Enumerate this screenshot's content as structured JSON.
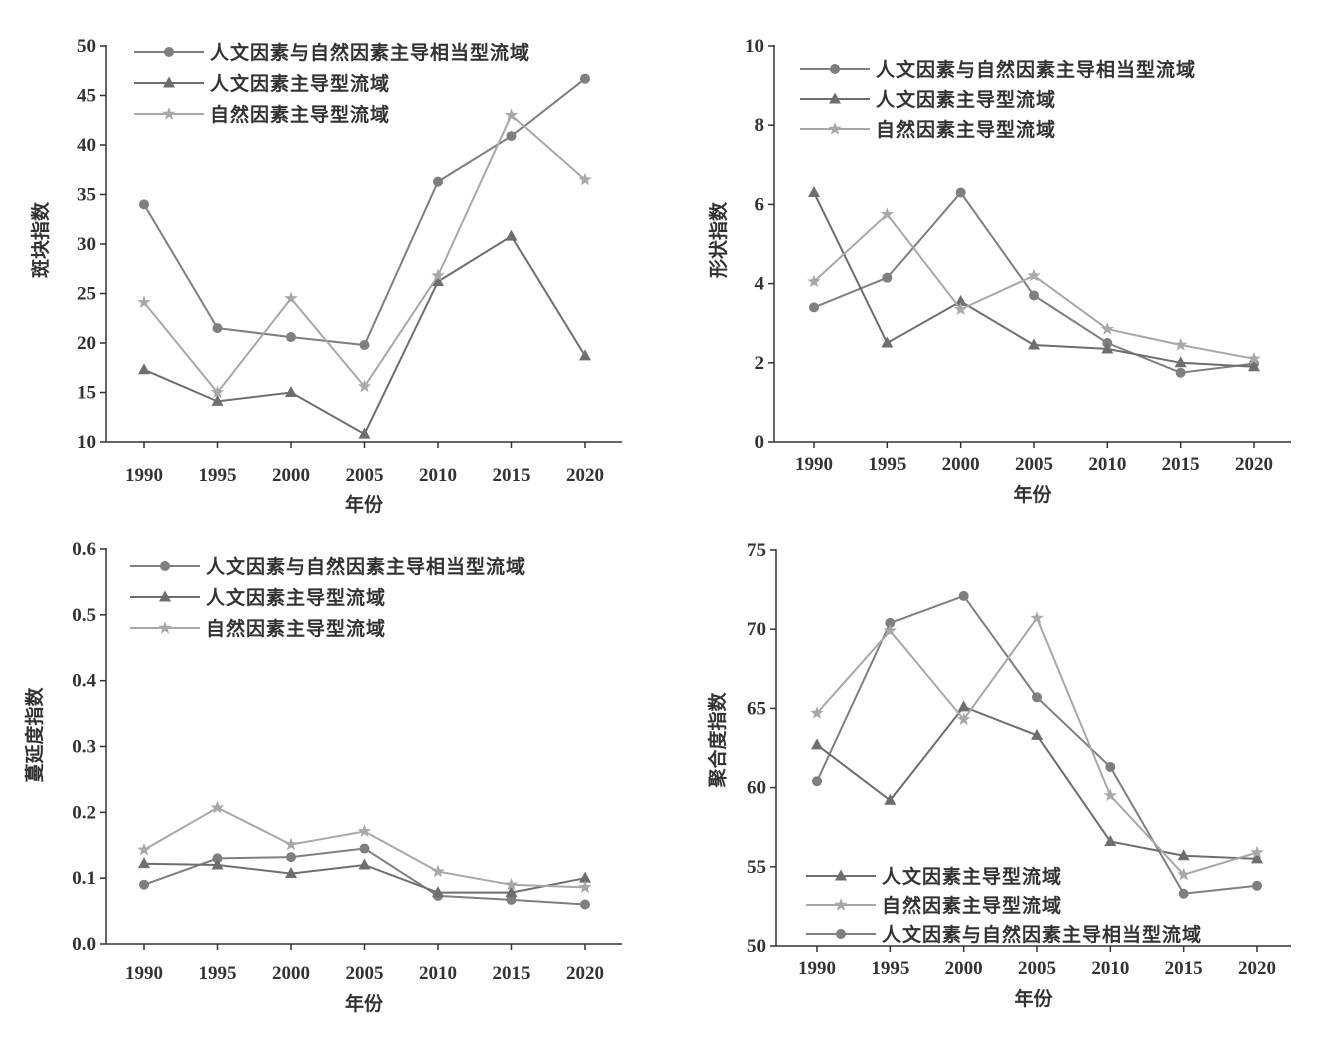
{
  "legend_names": {
    "balanced": "人文因素与自然因素主导相当型流域",
    "human": "人文因素主导型流域",
    "natural": "自然因素主导型流域"
  },
  "colors": {
    "balanced": "#7f7f7f",
    "human": "#6e6e6e",
    "natural": "#a8a8a8",
    "axis": "#333333"
  },
  "markers": {
    "balanced": "circle",
    "human": "triangle",
    "natural": "star"
  },
  "chart_data": [
    {
      "type": "line",
      "xlabel": "年份",
      "ylabel": "斑块指数",
      "x": [
        1990,
        1995,
        2000,
        2005,
        2010,
        2015,
        2020
      ],
      "xticks": [
        "1990",
        "1995",
        "2000",
        "2005",
        "2010",
        "2015",
        "2020"
      ],
      "ylim": [
        10,
        50
      ],
      "yticks": [
        "10",
        "15",
        "20",
        "25",
        "30",
        "35",
        "40",
        "45",
        "50"
      ],
      "legend_order": [
        "balanced",
        "human",
        "natural"
      ],
      "series": [
        {
          "key": "balanced",
          "name": "人文因素与自然因素主导相当型流域",
          "values": [
            34.0,
            21.5,
            20.6,
            19.8,
            36.3,
            40.9,
            46.7
          ]
        },
        {
          "key": "human",
          "name": "人文因素主导型流域",
          "values": [
            17.3,
            14.1,
            15.0,
            10.8,
            26.2,
            30.8,
            18.7
          ]
        },
        {
          "key": "natural",
          "name": "自然因素主导型流域",
          "values": [
            24.1,
            15.0,
            24.5,
            15.6,
            26.8,
            43.0,
            36.5
          ]
        }
      ]
    },
    {
      "type": "line",
      "xlabel": "年份",
      "ylabel": "形状指数",
      "x": [
        1990,
        1995,
        2000,
        2005,
        2010,
        2015,
        2020
      ],
      "xticks": [
        "1990",
        "1995",
        "2000",
        "2005",
        "2010",
        "2015",
        "2020"
      ],
      "ylim": [
        0,
        10
      ],
      "yticks": [
        "0",
        "2",
        "4",
        "6",
        "8",
        "10"
      ],
      "legend_order": [
        "balanced",
        "human",
        "natural"
      ],
      "series": [
        {
          "key": "balanced",
          "name": "人文因素与自然因素主导相当型流域",
          "values": [
            3.4,
            4.15,
            6.3,
            3.7,
            2.5,
            1.75,
            1.98
          ]
        },
        {
          "key": "human",
          "name": "人文因素主导型流域",
          "values": [
            6.3,
            2.5,
            3.55,
            2.45,
            2.35,
            2.0,
            1.9
          ]
        },
        {
          "key": "natural",
          "name": "自然因素主导型流域",
          "values": [
            4.05,
            5.75,
            3.35,
            4.2,
            2.85,
            2.45,
            2.1
          ]
        }
      ]
    },
    {
      "type": "line",
      "xlabel": "年份",
      "ylabel": "蔓延度指数",
      "x": [
        1990,
        1995,
        2000,
        2005,
        2010,
        2015,
        2020
      ],
      "xticks": [
        "1990",
        "1995",
        "2000",
        "2005",
        "2010",
        "2015",
        "2020"
      ],
      "ylim": [
        0.0,
        0.6
      ],
      "yticks": [
        "0.0",
        "0.1",
        "0.2",
        "0.3",
        "0.4",
        "0.5",
        "0.6"
      ],
      "legend_order": [
        "balanced",
        "human",
        "natural"
      ],
      "series": [
        {
          "key": "balanced",
          "name": "人文因素与自然因素主导相当型流域",
          "values": [
            0.09,
            0.13,
            0.132,
            0.145,
            0.073,
            0.067,
            0.06
          ]
        },
        {
          "key": "human",
          "name": "人文因素主导型流域",
          "values": [
            0.122,
            0.12,
            0.107,
            0.12,
            0.078,
            0.078,
            0.1
          ]
        },
        {
          "key": "natural",
          "name": "自然因素主导型流域",
          "values": [
            0.143,
            0.207,
            0.151,
            0.171,
            0.11,
            0.09,
            0.086
          ]
        }
      ]
    },
    {
      "type": "line",
      "xlabel": "年份",
      "ylabel": "聚合度指数",
      "x": [
        1990,
        1995,
        2000,
        2005,
        2010,
        2015,
        2020
      ],
      "xticks": [
        "1990",
        "1995",
        "2000",
        "2005",
        "2010",
        "2015",
        "2020"
      ],
      "ylim": [
        50,
        75
      ],
      "yticks": [
        "50",
        "55",
        "60",
        "65",
        "70",
        "75"
      ],
      "legend_order": [
        "human",
        "natural",
        "balanced"
      ],
      "series": [
        {
          "key": "balanced",
          "name": "人文因素与自然因素主导相当型流域",
          "values": [
            60.4,
            70.4,
            72.1,
            65.7,
            61.3,
            53.3,
            53.8
          ]
        },
        {
          "key": "human",
          "name": "人文因素主导型流域",
          "values": [
            62.7,
            59.2,
            65.1,
            63.3,
            56.6,
            55.7,
            55.5
          ]
        },
        {
          "key": "natural",
          "name": "自然因素主导型流域",
          "values": [
            64.7,
            69.9,
            64.3,
            70.7,
            59.5,
            54.5,
            55.9
          ]
        }
      ]
    }
  ]
}
